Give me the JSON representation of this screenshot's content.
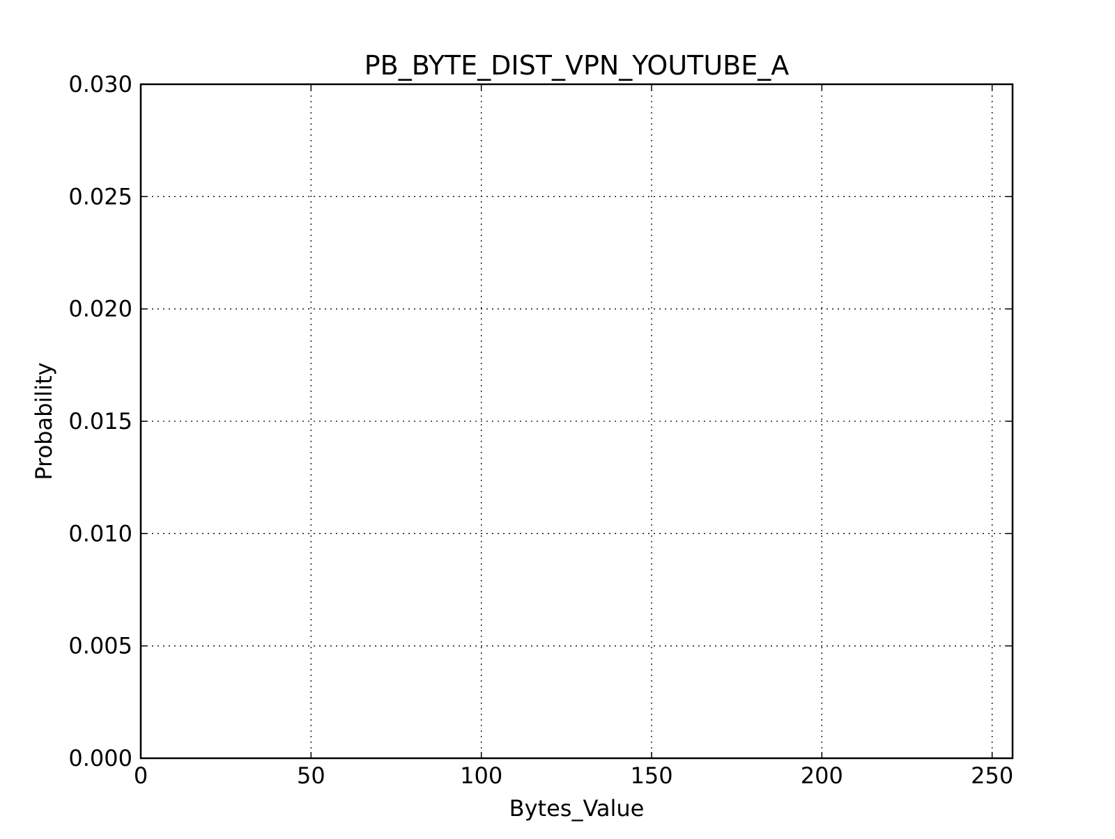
{
  "chart_data": {
    "type": "bar",
    "title": "PB_BYTE_DIST_VPN_YOUTUBE_A",
    "xlabel": "Bytes_Value",
    "ylabel": "Probability",
    "xlim": [
      0,
      256
    ],
    "ylim": [
      0,
      0.03
    ],
    "xticks": [
      0,
      50,
      100,
      150,
      200,
      250
    ],
    "xtick_labels": [
      "0",
      "50",
      "100",
      "150",
      "200",
      "250"
    ],
    "yticks": [
      0,
      0.005,
      0.01,
      0.015,
      0.02,
      0.025,
      0.03
    ],
    "ytick_labels": [
      "0.000",
      "0.005",
      "0.010",
      "0.015",
      "0.020",
      "0.025",
      "0.030"
    ],
    "grid": true,
    "grid_style": "dotted",
    "series": [
      {
        "x": [],
        "values": []
      }
    ]
  }
}
